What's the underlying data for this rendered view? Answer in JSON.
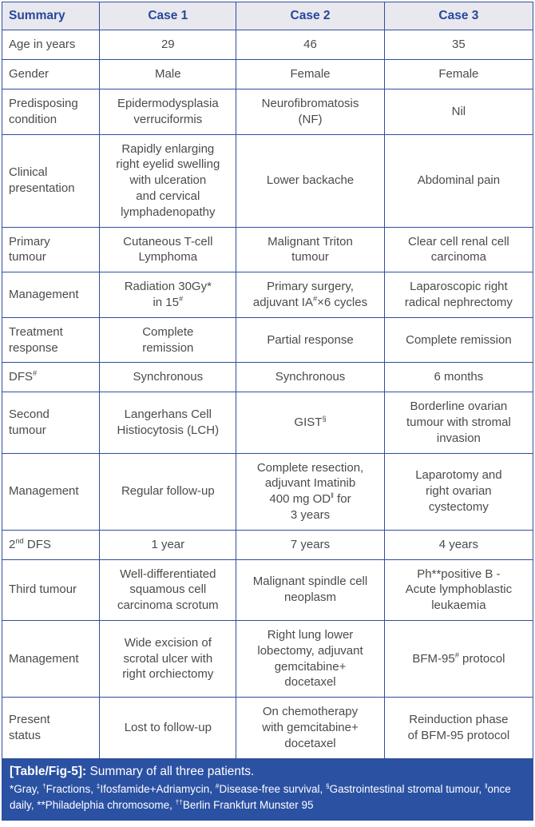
{
  "colors": {
    "border_blue": "#2e4f9e",
    "header_bg": "#e8e8ee",
    "header_text": "#27479b",
    "body_text": "#4b4b4d",
    "caption_band_bg": "#2b51a3",
    "caption_band_text": "#ffffff"
  },
  "table": {
    "header": {
      "col0": "Summary",
      "col1": "Case 1",
      "col2": "Case 2",
      "col3": "Case 3"
    },
    "rows": [
      {
        "label": "Age in years",
        "c1": "29",
        "c2": "46",
        "c3": "35"
      },
      {
        "label": "Gender",
        "c1": "Male",
        "c2": "Female",
        "c3": "Female"
      },
      {
        "label": "Predisposing\ncondition",
        "c1": "Epidermodysplasia\nverruciformis",
        "c2": "Neurofibromatosis\n(NF)",
        "c3": "Nil"
      },
      {
        "label": "Clinical\npresentation",
        "c1": "Rapidly enlarging\nright eyelid swelling\nwith ulceration\nand cervical\nlymphadenopathy",
        "c2": "Lower backache",
        "c3": "Abdominal pain"
      },
      {
        "label": "Primary\ntumour",
        "c1": "Cutaneous T-cell\nLymphoma",
        "c2": "Malignant Triton\ntumour",
        "c3": "Clear cell renal cell\ncarcinoma"
      },
      {
        "label": "Management",
        "c1": "Radiation 30Gy*\nin 15^{#}",
        "c2": "Primary surgery,\nadjuvant IA^{#}×6 cycles",
        "c3": "Laparoscopic right\nradical nephrectomy"
      },
      {
        "label": "Treatment\nresponse",
        "c1": "Complete\nremission",
        "c2": "Partial response",
        "c3": "Complete remission"
      },
      {
        "label": "DFS^{#}",
        "c1": "Synchronous",
        "c2": "Synchronous",
        "c3": "6 months"
      },
      {
        "label": "Second\ntumour",
        "c1": "Langerhans Cell\nHistiocytosis (LCH)",
        "c2": "GIST^{§}",
        "c3": "Borderline ovarian\ntumour with stromal\ninvasion"
      },
      {
        "label": "Management",
        "c1": "Regular follow-up",
        "c2": "Complete resection,\nadjuvant Imatinib\n400 mg OD^{‖} for\n3 years",
        "c3": "Laparotomy and\nright ovarian\ncystectomy"
      },
      {
        "label": "2^{nd} DFS",
        "c1": "1 year",
        "c2": "7 years",
        "c3": "4 years"
      },
      {
        "label": "Third tumour",
        "c1": "Well-differentiated\nsquamous cell\ncarcinoma scrotum",
        "c2": "Malignant spindle cell\nneoplasm",
        "c3": "Ph**positive B -\nAcute lymphoblastic\nleukaemia"
      },
      {
        "label": "Management",
        "c1": "Wide excision of\nscrotal ulcer with\nright orchiectomy",
        "c2": "Right lung lower\nlobectomy, adjuvant\ngemcitabine+\ndocetaxel",
        "c3": "BFM-95^{#} protocol"
      },
      {
        "label": "Present\nstatus",
        "c1": "Lost to follow-up",
        "c2": "On chemotherapy\nwith gemcitabine+\ndocetaxel",
        "c3": "Reinduction phase\nof BFM-95 protocol"
      }
    ]
  },
  "footer": {
    "caption_label": "[Table/Fig-5]:",
    "caption_text": "Summary of all three patients.",
    "footnotes": "*Gray, ^{†}Fractions, ^{‡}Ifosfamide+Adriamycin, ^{#}Disease-free survival, ^{§}Gastrointestinal stromal tumour, ^{‖}once daily, **Philadelphia chromosome, ^{††}Berlin Frankfurt Munster 95"
  }
}
